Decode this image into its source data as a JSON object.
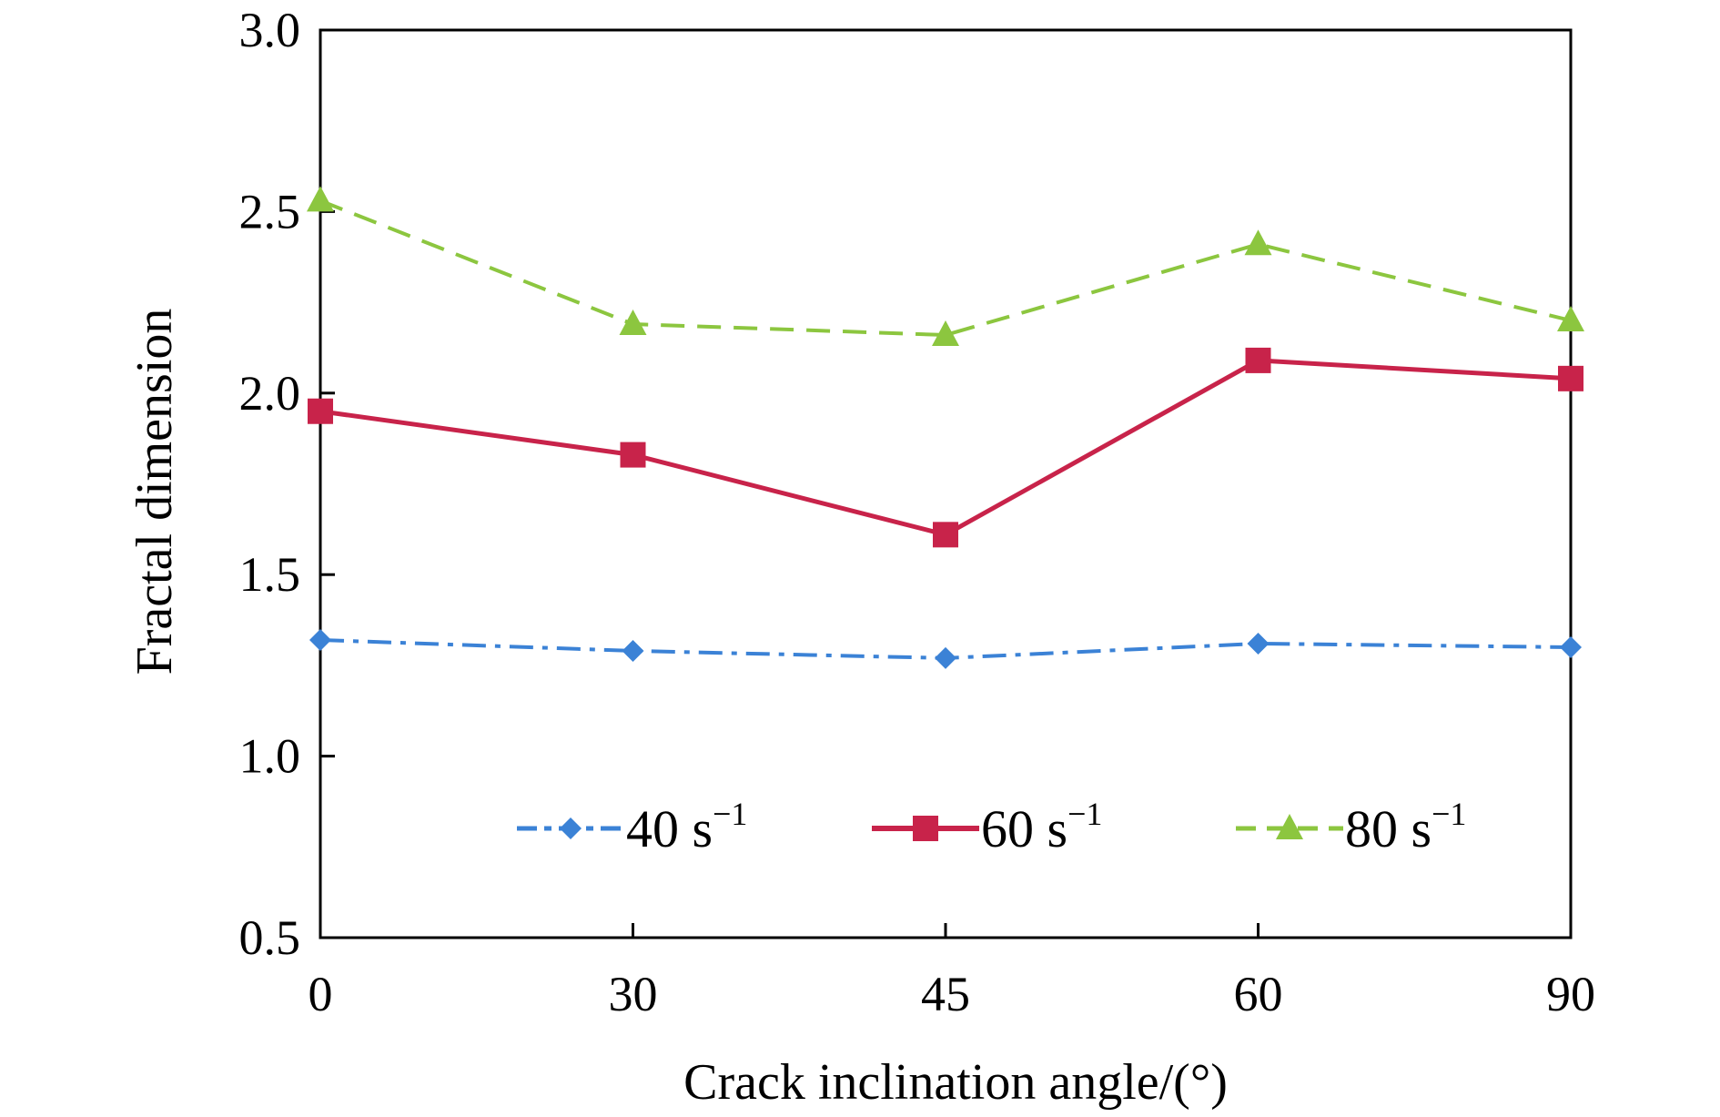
{
  "chart_data": {
    "type": "line",
    "title": "",
    "xlabel": "Crack inclination angle/(°)",
    "ylabel": "Fractal dimension",
    "categories": [
      "0",
      "30",
      "45",
      "60",
      "90"
    ],
    "ylim": [
      0.5,
      3.0
    ],
    "yticks": [
      0.5,
      1.0,
      1.5,
      2.0,
      2.5,
      3.0
    ],
    "ytick_labels": [
      "0.5",
      "1.0",
      "1.5",
      "2.0",
      "2.5",
      "3.0"
    ],
    "grid": false,
    "legend_position": "inside-bottom",
    "series": [
      {
        "name": "40 s⁻¹",
        "legend_base": "40 s",
        "legend_sup": "−1",
        "values": [
          1.32,
          1.29,
          1.27,
          1.31,
          1.3
        ],
        "color": "#3b82d6",
        "line_style": "dash-dot",
        "marker": "diamond"
      },
      {
        "name": "60 s⁻¹",
        "legend_base": "60 s",
        "legend_sup": "−1",
        "values": [
          1.95,
          1.83,
          1.61,
          2.09,
          2.04
        ],
        "color": "#c8234a",
        "line_style": "solid",
        "marker": "square"
      },
      {
        "name": "80 s⁻¹",
        "legend_base": "80 s",
        "legend_sup": "−1",
        "values": [
          2.53,
          2.19,
          2.16,
          2.41,
          2.2
        ],
        "color": "#8cc63f",
        "line_style": "dashed",
        "marker": "triangle"
      }
    ]
  }
}
